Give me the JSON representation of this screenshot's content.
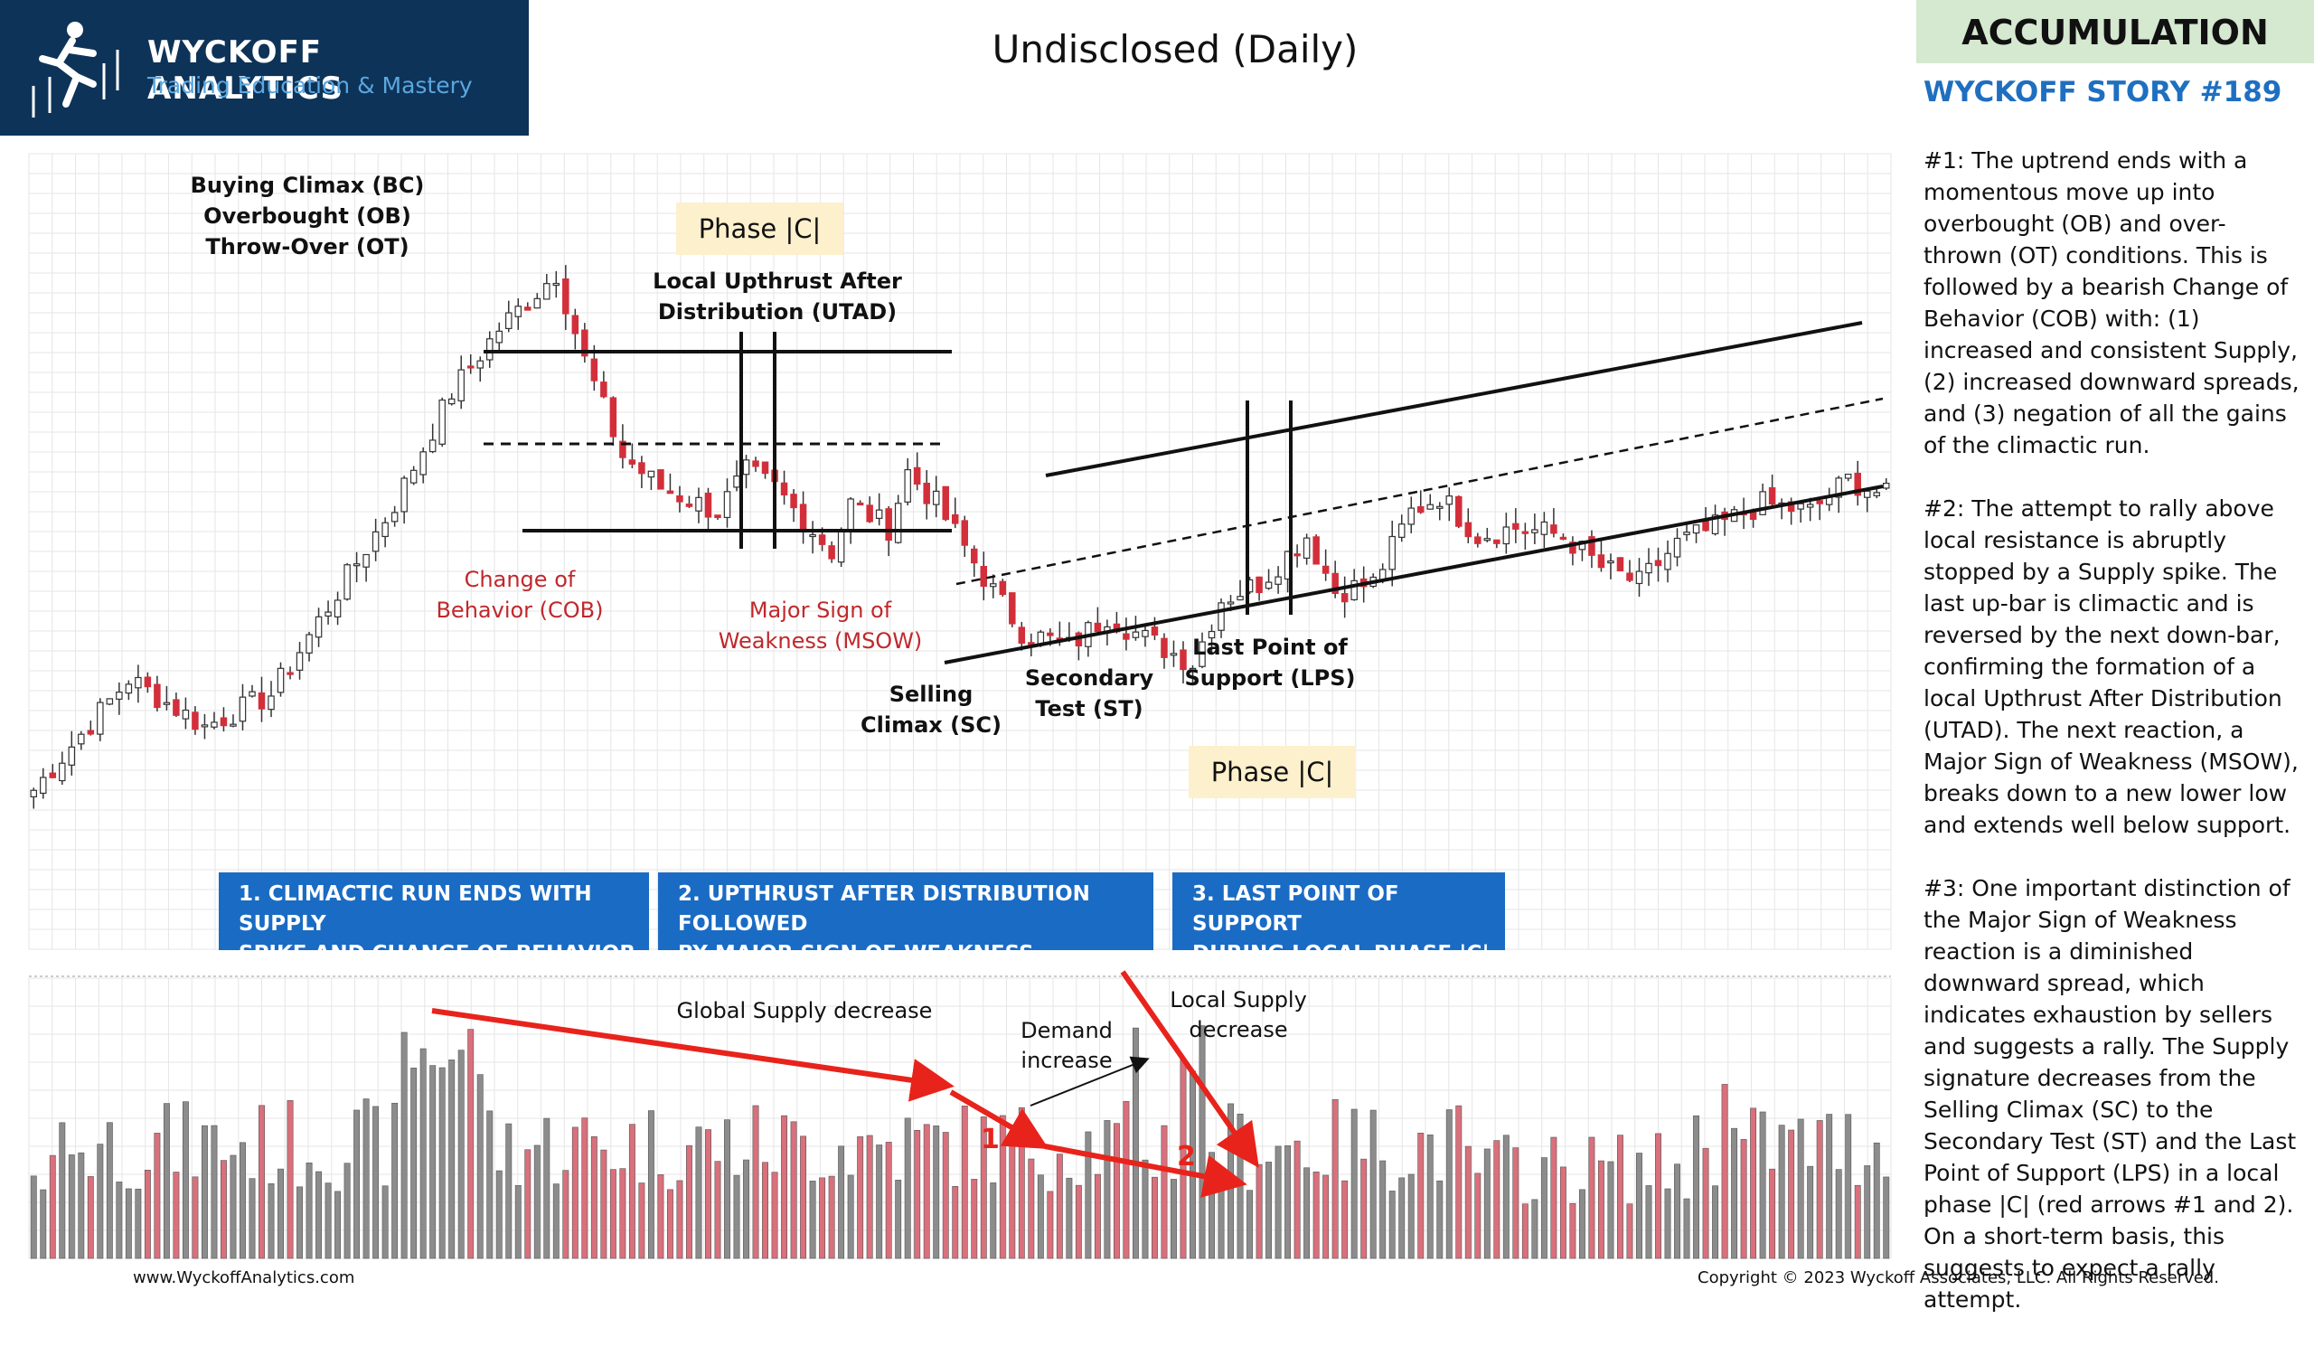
{
  "logo": {
    "title": "WYCKOFF ANALYTICS",
    "subtitle": "Trading Education & Mastery"
  },
  "page_title": "Undisclosed (Daily)",
  "badge": "ACCUMULATION",
  "story_title": "WYCKOFF STORY #189",
  "sidebar": {
    "p1": "#1: The uptrend ends with a momentous move up into overbought (OB) and over-thrown (OT) conditions.  This is followed by a bearish Change of Behavior (COB) with: (1) increased and consistent Supply, (2) increased downward spreads, and (3) negation of all the gains of the climactic run.",
    "p2": "#2: The attempt to rally above local resistance is abruptly stopped by a Supply spike. The last up-bar is climactic and is reversed by the next down-bar, confirming the formation of a local Upthrust After Distribution (UTAD). The next reaction, a Major Sign of Weakness (MSOW), breaks down to a new lower low and extends well below support.",
    "p3": "#3: One important distinction of the Major Sign of Weakness reaction is a diminished downward spread, which indicates exhaustion by sellers and suggests a rally. The Supply signature decreases from the Selling Climax (SC) to the Secondary Test (ST) and the Last Point of Support (LPS) in a local phase |C| (red arrows #1 and 2). On a short-term basis, this suggests to expect a rally attempt."
  },
  "annotations": {
    "bc": [
      "Buying Climax (BC)",
      "Overbought (OB)",
      "Throw-Over (OT)"
    ],
    "utad": [
      "Local Upthrust After",
      "Distribution (UTAD)"
    ],
    "cob": [
      "Change of",
      "Behavior (COB)"
    ],
    "msow": [
      "Major Sign of",
      "Weakness (MSOW)"
    ],
    "sc": [
      "Selling",
      "Climax (SC)"
    ],
    "st": [
      "Secondary",
      "Test (ST)"
    ],
    "lps": [
      "Last Point of",
      "Support (LPS)"
    ],
    "phase1": "Phase |C|",
    "phase2": "Phase |C|"
  },
  "boxes": {
    "b1": [
      "1. CLIMACTIC RUN ENDS WITH SUPPLY",
      "SPIKE AND CHANGE OF BEHAVIOR"
    ],
    "b2": [
      "2. UPTHRUST AFTER DISTRIBUTION FOLLOWED",
      "BY MAJOR SIGN OF WEAKNESS"
    ],
    "b3": [
      "3. LAST POINT OF SUPPORT",
      "DURING LOCAL PHASE |C|"
    ]
  },
  "volume_annotations": {
    "global": "Global Supply decrease",
    "demand": [
      "Demand",
      "increase"
    ],
    "local": [
      "Local Supply",
      "decrease"
    ],
    "n1": "1",
    "n2": "2"
  },
  "footer": {
    "left": "www.WyckoffAnalytics.com",
    "right": "Copyright © 2023 Wyckoff Associates, LLC. All Rights Reserved."
  },
  "colors": {
    "up": "#ffffff",
    "down": "#d22f3a",
    "vol_up": "#8c8c8c",
    "vol_down": "#d9707c",
    "accent": "#1a6bc4",
    "arrow": "#e8231b"
  },
  "chart_data": {
    "type": "candlestick",
    "title": "Undisclosed (Daily)",
    "price_path_anchors": [
      [
        0,
        20
      ],
      [
        10,
        34
      ],
      [
        18,
        28
      ],
      [
        25,
        32
      ],
      [
        38,
        56
      ],
      [
        44,
        70
      ],
      [
        49,
        78
      ],
      [
        55,
        85
      ],
      [
        58,
        74
      ],
      [
        62,
        62
      ],
      [
        66,
        58
      ],
      [
        72,
        55
      ],
      [
        75,
        60
      ],
      [
        78,
        58
      ],
      [
        84,
        50
      ],
      [
        86,
        56
      ],
      [
        90,
        53
      ],
      [
        92,
        60
      ],
      [
        95,
        56
      ],
      [
        101,
        45
      ],
      [
        104,
        40
      ],
      [
        109,
        38
      ],
      [
        113,
        42
      ],
      [
        117,
        39
      ],
      [
        122,
        36
      ],
      [
        125,
        44
      ],
      [
        129,
        46
      ],
      [
        134,
        52
      ],
      [
        137,
        45
      ],
      [
        141,
        46
      ],
      [
        145,
        55
      ],
      [
        148,
        57
      ],
      [
        152,
        52
      ],
      [
        156,
        53
      ],
      [
        161,
        52
      ],
      [
        165,
        48
      ],
      [
        169,
        46
      ],
      [
        173,
        51
      ],
      [
        177,
        53
      ],
      [
        182,
        56
      ],
      [
        187,
        55
      ],
      [
        191,
        59
      ],
      [
        195,
        57
      ]
    ],
    "volume": {
      "series": [
        "supply/demand bars"
      ],
      "legend": "up = grey, down = red"
    }
  }
}
